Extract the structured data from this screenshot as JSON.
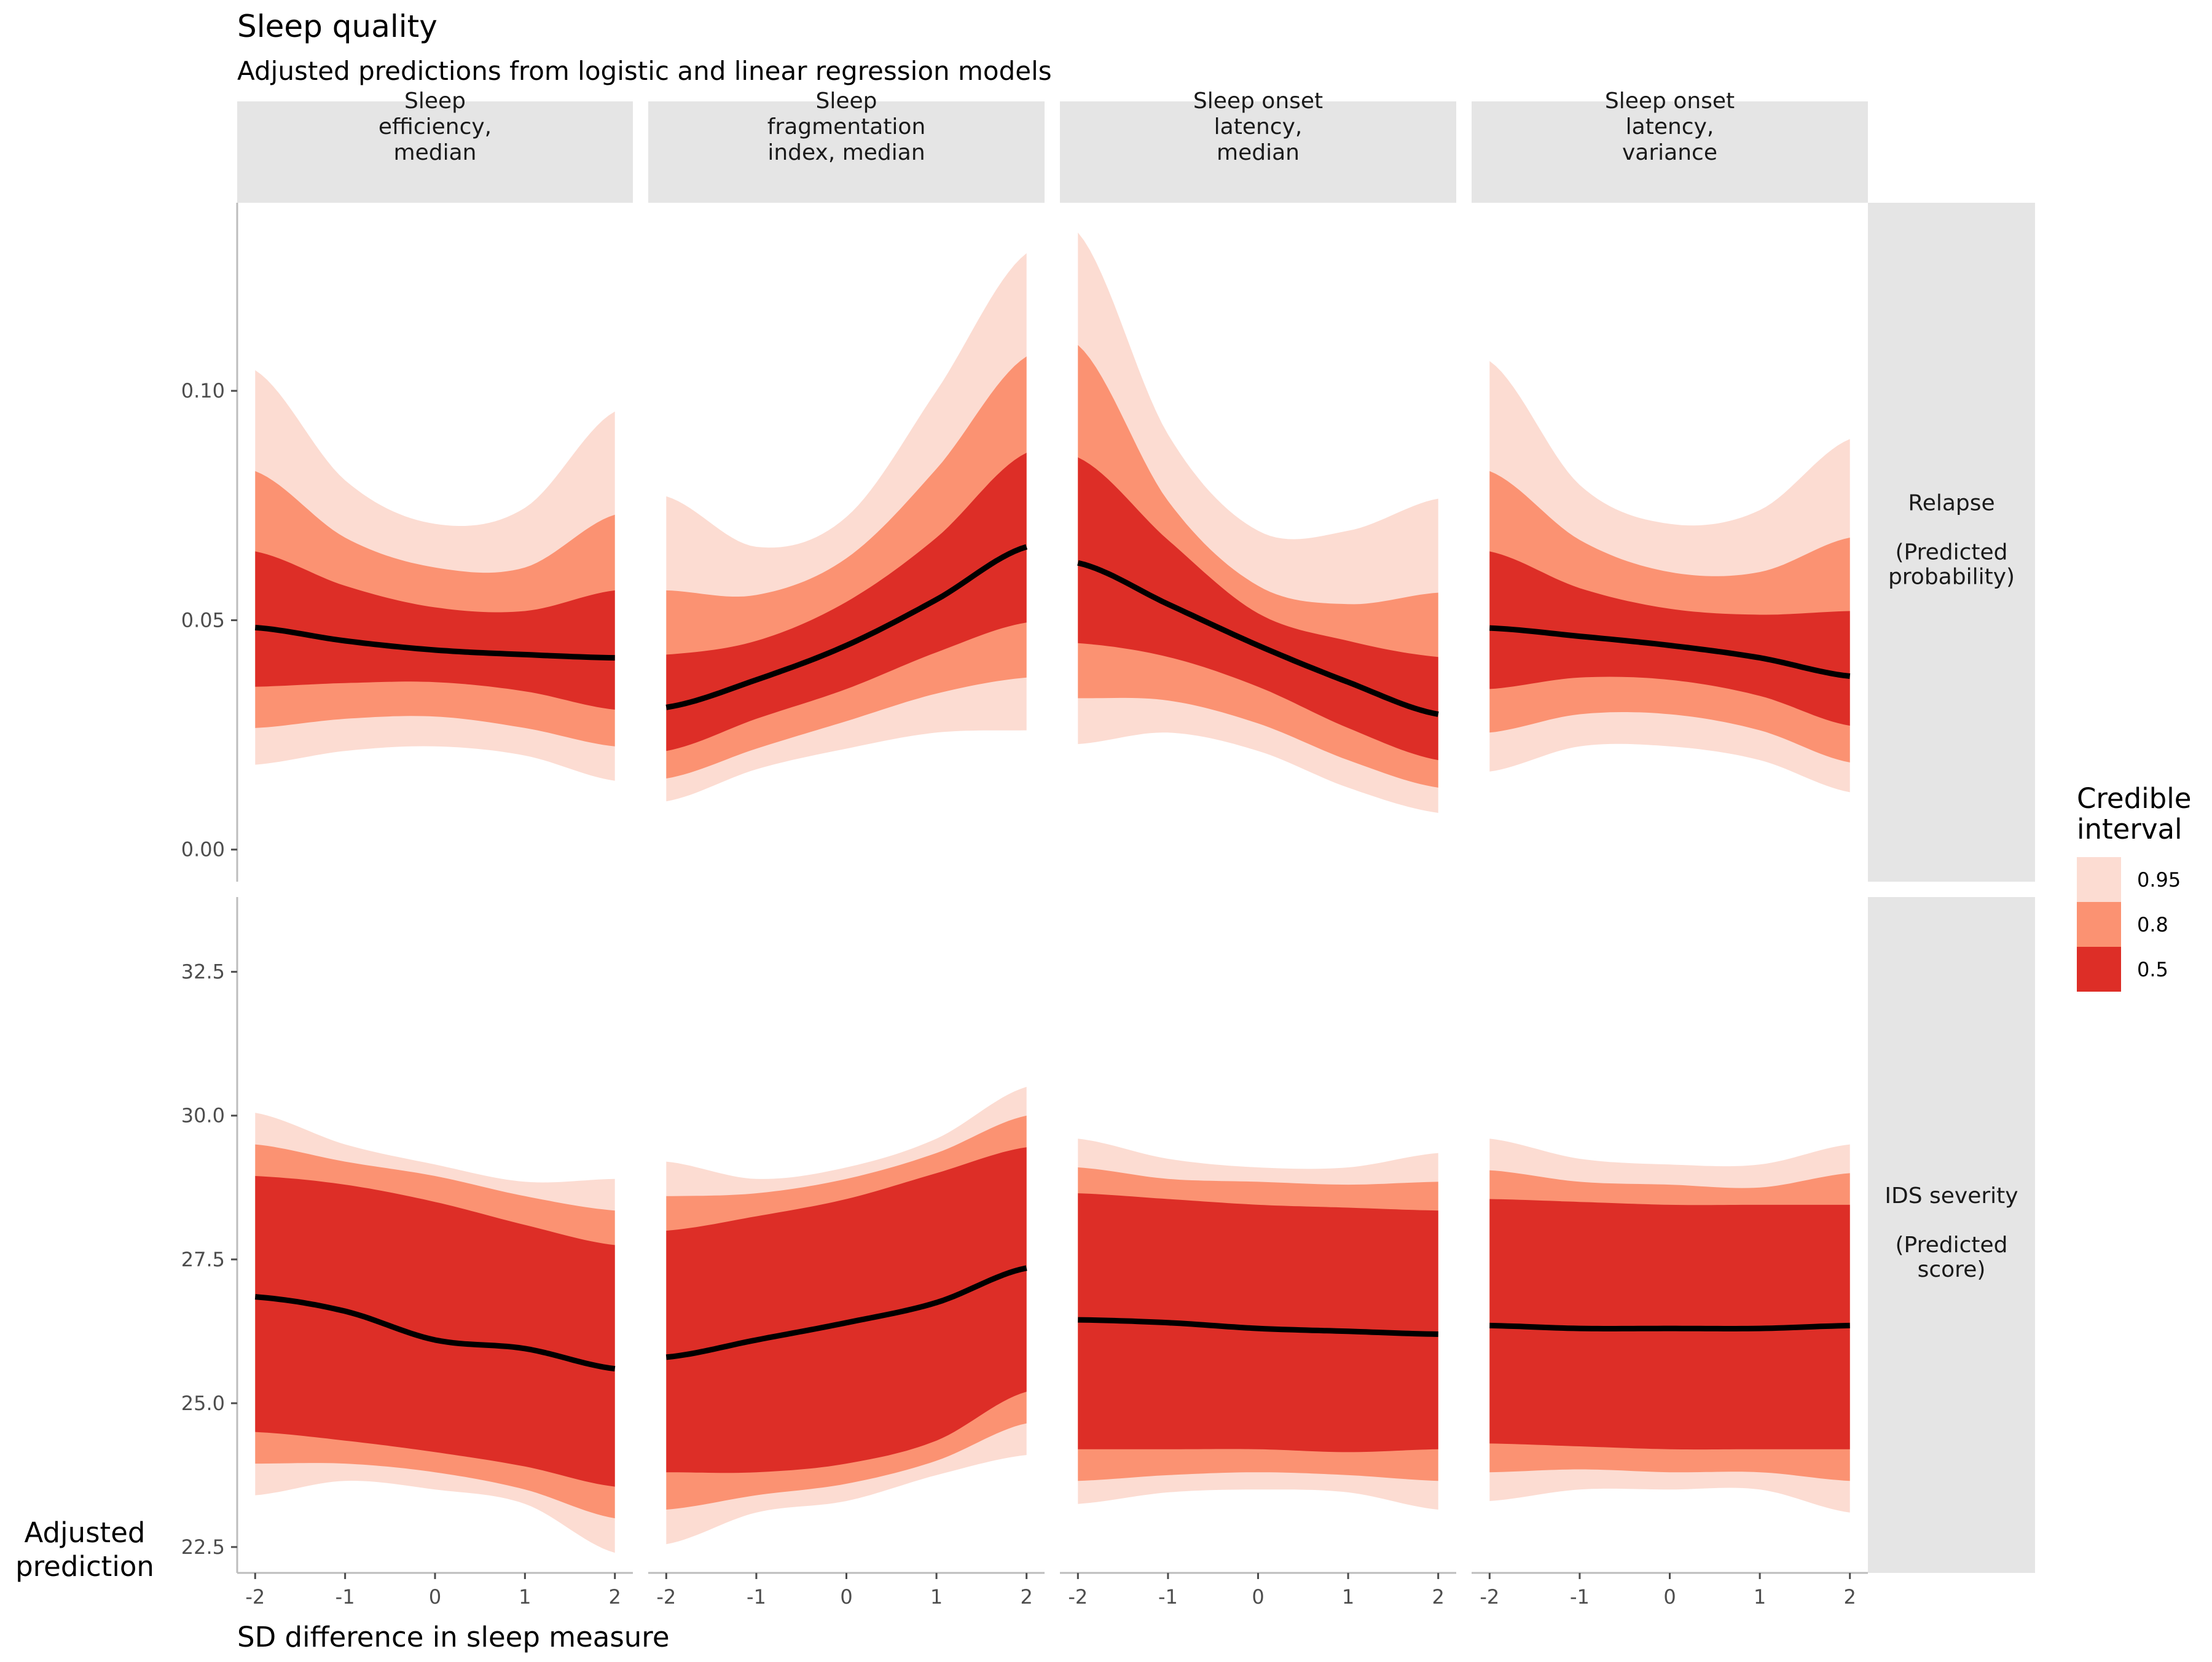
{
  "chart_data": {
    "type": "area",
    "title": "Sleep quality",
    "subtitle": "Adjusted predictions from logistic and linear regression models",
    "xlabel": "SD difference in sleep measure",
    "ylabel": "Adjusted prediction",
    "x_ticks": [
      -2,
      -1,
      0,
      1,
      2
    ],
    "x_tick_labels": [
      "-2",
      "-1",
      "0",
      "1",
      "2"
    ],
    "xlim": [
      -2.2,
      2.2
    ],
    "facet_columns": [
      "Sleep\nefficiency,\nmedian",
      "Sleep\nfragmentation\nindex, median",
      "Sleep onset\nlatency,\nmedian",
      "Sleep onset\nlatency,\nvariance"
    ],
    "facet_rows": [
      {
        "label": "Relapse\n\n(Predicted\nprobability)",
        "ylim": [
          -0.007,
          0.141
        ],
        "y_ticks": [
          0,
          0.05,
          0.1
        ],
        "y_tick_labels": [
          "0.00",
          "0.05",
          "0.10"
        ]
      },
      {
        "label": "IDS severity\n\n(Predicted\nscore)",
        "ylim": [
          22.05,
          33.8
        ],
        "y_ticks": [
          22.5,
          25,
          27.5,
          30,
          32.5
        ],
        "y_tick_labels": [
          "22.5",
          "25.0",
          "27.5",
          "30.0",
          "32.5"
        ]
      }
    ],
    "legend": {
      "title": "Credible\ninterval",
      "entries": [
        {
          "label": "0.95",
          "color": "#fcdcd2"
        },
        {
          "label": "0.8",
          "color": "#fb9272"
        },
        {
          "label": "0.5",
          "color": "#dd2e27"
        }
      ],
      "placement": "right"
    },
    "line_color": "#000000",
    "grid": false,
    "panels": [
      {
        "row": 0,
        "col": 0,
        "x": [
          -2,
          -1,
          0,
          1,
          2
        ],
        "median": [
          0.0484,
          0.0455,
          0.0435,
          0.0425,
          0.0418
        ],
        "ci50": [
          [
            0.0355,
            0.065
          ],
          [
            0.0363,
            0.0575
          ],
          [
            0.0365,
            0.0528
          ],
          [
            0.0345,
            0.052
          ],
          [
            0.0305,
            0.0565
          ]
        ],
        "ci80": [
          [
            0.0265,
            0.0825
          ],
          [
            0.0285,
            0.068
          ],
          [
            0.029,
            0.0615
          ],
          [
            0.0265,
            0.0615
          ],
          [
            0.0225,
            0.073
          ]
        ],
        "ci95": [
          [
            0.0185,
            0.1045
          ],
          [
            0.0215,
            0.0805
          ],
          [
            0.0225,
            0.071
          ],
          [
            0.0205,
            0.0745
          ],
          [
            0.015,
            0.0955
          ]
        ]
      },
      {
        "row": 0,
        "col": 1,
        "x": [
          -2,
          -1,
          0,
          1,
          2
        ],
        "median": [
          0.031,
          0.037,
          0.0445,
          0.0545,
          0.066
        ],
        "ci50": [
          [
            0.0215,
            0.0425
          ],
          [
            0.0285,
            0.0455
          ],
          [
            0.035,
            0.054
          ],
          [
            0.043,
            0.068
          ],
          [
            0.0495,
            0.0865
          ]
        ],
        "ci80": [
          [
            0.0155,
            0.0565
          ],
          [
            0.022,
            0.0555
          ],
          [
            0.028,
            0.0635
          ],
          [
            0.034,
            0.083
          ],
          [
            0.0375,
            0.1075
          ]
        ],
        "ci95": [
          [
            0.0105,
            0.077
          ],
          [
            0.0175,
            0.066
          ],
          [
            0.022,
            0.0725
          ],
          [
            0.0255,
            0.1
          ],
          [
            0.026,
            0.13
          ]
        ]
      },
      {
        "row": 0,
        "col": 2,
        "x": [
          -2,
          -1,
          0,
          1,
          2
        ],
        "median": [
          0.0625,
          0.0535,
          0.0445,
          0.0365,
          0.0295
        ],
        "ci50": [
          [
            0.045,
            0.0855
          ],
          [
            0.042,
            0.0675
          ],
          [
            0.0355,
            0.0515
          ],
          [
            0.0265,
            0.0455
          ],
          [
            0.0195,
            0.042
          ]
        ],
        "ci80": [
          [
            0.033,
            0.11
          ],
          [
            0.0325,
            0.076
          ],
          [
            0.0275,
            0.0575
          ],
          [
            0.0195,
            0.0535
          ],
          [
            0.0135,
            0.056
          ]
        ],
        "ci95": [
          [
            0.023,
            0.1345
          ],
          [
            0.0255,
            0.0905
          ],
          [
            0.0215,
            0.0695
          ],
          [
            0.0135,
            0.0695
          ],
          [
            0.008,
            0.0765
          ]
        ]
      },
      {
        "row": 0,
        "col": 3,
        "x": [
          -2,
          -1,
          0,
          1,
          2
        ],
        "median": [
          0.0483,
          0.0465,
          0.0445,
          0.0418,
          0.0378
        ],
        "ci50": [
          [
            0.035,
            0.065
          ],
          [
            0.0375,
            0.057
          ],
          [
            0.037,
            0.0525
          ],
          [
            0.0335,
            0.0512
          ],
          [
            0.027,
            0.052
          ]
        ],
        "ci80": [
          [
            0.0255,
            0.0825
          ],
          [
            0.0295,
            0.0675
          ],
          [
            0.0295,
            0.0605
          ],
          [
            0.026,
            0.0605
          ],
          [
            0.019,
            0.068
          ]
        ],
        "ci95": [
          [
            0.017,
            0.1065
          ],
          [
            0.0225,
            0.0795
          ],
          [
            0.0225,
            0.071
          ],
          [
            0.0195,
            0.074
          ],
          [
            0.0125,
            0.0895
          ]
        ]
      },
      {
        "row": 1,
        "col": 0,
        "x": [
          -2,
          -1,
          0,
          1,
          2
        ],
        "median": [
          26.85,
          26.6,
          26.1,
          25.95,
          25.6
        ],
        "ci50": [
          [
            24.5,
            28.95
          ],
          [
            24.35,
            28.8
          ],
          [
            24.15,
            28.5
          ],
          [
            23.9,
            28.1
          ],
          [
            23.55,
            27.75
          ]
        ],
        "ci80": [
          [
            23.95,
            29.5
          ],
          [
            23.95,
            29.2
          ],
          [
            23.8,
            28.95
          ],
          [
            23.5,
            28.6
          ],
          [
            23.0,
            28.35
          ]
        ],
        "ci95": [
          [
            23.4,
            30.05
          ],
          [
            23.65,
            29.5
          ],
          [
            23.5,
            29.15
          ],
          [
            23.25,
            28.85
          ],
          [
            22.4,
            28.9
          ]
        ]
      },
      {
        "row": 1,
        "col": 1,
        "x": [
          -2,
          -1,
          0,
          1,
          2
        ],
        "median": [
          25.8,
          26.1,
          26.4,
          26.75,
          27.35
        ],
        "ci50": [
          [
            23.8,
            28.0
          ],
          [
            23.8,
            28.25
          ],
          [
            23.95,
            28.55
          ],
          [
            24.35,
            29.0
          ],
          [
            25.2,
            29.45
          ]
        ],
        "ci80": [
          [
            23.15,
            28.6
          ],
          [
            23.4,
            28.65
          ],
          [
            23.6,
            28.9
          ],
          [
            24.0,
            29.35
          ],
          [
            24.65,
            30.0
          ]
        ],
        "ci95": [
          [
            22.55,
            29.2
          ],
          [
            23.1,
            28.9
          ],
          [
            23.3,
            29.1
          ],
          [
            23.75,
            29.6
          ],
          [
            24.1,
            30.5
          ]
        ]
      },
      {
        "row": 1,
        "col": 2,
        "x": [
          -2,
          -1,
          0,
          1,
          2
        ],
        "median": [
          26.45,
          26.4,
          26.3,
          26.25,
          26.2
        ],
        "ci50": [
          [
            24.2,
            28.65
          ],
          [
            24.2,
            28.55
          ],
          [
            24.2,
            28.45
          ],
          [
            24.15,
            28.4
          ],
          [
            24.2,
            28.35
          ]
        ],
        "ci80": [
          [
            23.65,
            29.1
          ],
          [
            23.75,
            28.9
          ],
          [
            23.8,
            28.85
          ],
          [
            23.75,
            28.8
          ],
          [
            23.65,
            28.85
          ]
        ],
        "ci95": [
          [
            23.25,
            29.6
          ],
          [
            23.45,
            29.25
          ],
          [
            23.5,
            29.1
          ],
          [
            23.45,
            29.1
          ],
          [
            23.15,
            29.35
          ]
        ]
      },
      {
        "row": 1,
        "col": 3,
        "x": [
          -2,
          -1,
          0,
          1,
          2
        ],
        "median": [
          26.35,
          26.3,
          26.3,
          26.3,
          26.35
        ],
        "ci50": [
          [
            24.3,
            28.55
          ],
          [
            24.25,
            28.5
          ],
          [
            24.2,
            28.45
          ],
          [
            24.2,
            28.45
          ],
          [
            24.2,
            28.45
          ]
        ],
        "ci80": [
          [
            23.8,
            29.05
          ],
          [
            23.85,
            28.85
          ],
          [
            23.8,
            28.8
          ],
          [
            23.8,
            28.75
          ],
          [
            23.65,
            29.0
          ]
        ],
        "ci95": [
          [
            23.3,
            29.6
          ],
          [
            23.5,
            29.25
          ],
          [
            23.5,
            29.15
          ],
          [
            23.5,
            29.15
          ],
          [
            23.1,
            29.5
          ]
        ]
      }
    ]
  }
}
